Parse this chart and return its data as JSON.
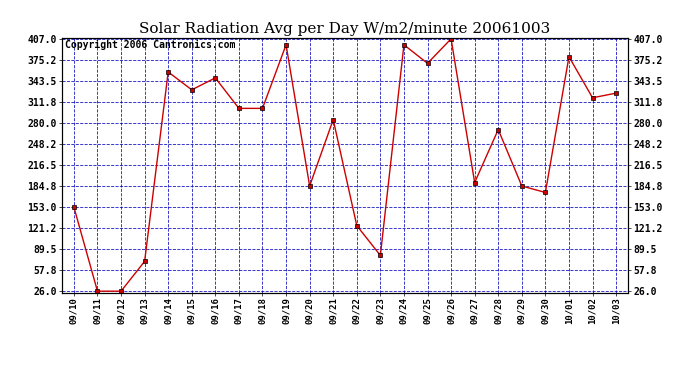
{
  "title": "Solar Radiation Avg per Day W/m2/minute 20061003",
  "copyright": "Copyright 2006 Cantronics.com",
  "dates": [
    "09/10",
    "09/11",
    "09/12",
    "09/13",
    "09/14",
    "09/15",
    "09/16",
    "09/17",
    "09/18",
    "09/19",
    "09/20",
    "09/21",
    "09/22",
    "09/23",
    "09/24",
    "09/25",
    "09/26",
    "09/27",
    "09/28",
    "09/29",
    "09/30",
    "10/01",
    "10/02",
    "10/03"
  ],
  "values": [
    153.0,
    26.0,
    26.0,
    71.0,
    357.0,
    330.0,
    348.0,
    302.0,
    302.0,
    398.0,
    184.8,
    285.0,
    125.0,
    80.0,
    398.0,
    370.0,
    407.0,
    190.0,
    270.0,
    184.8,
    175.0,
    380.0,
    318.0,
    325.0
  ],
  "yticks": [
    26.0,
    57.8,
    89.5,
    121.2,
    153.0,
    184.8,
    216.5,
    248.2,
    280.0,
    311.8,
    343.5,
    375.2,
    407.0
  ],
  "ylim": [
    26.0,
    407.0
  ],
  "line_color": "#cc0000",
  "marker_color": "#cc0000",
  "plot_bg": "#ffffff",
  "grid_color": "#0000bb",
  "title_fontsize": 11,
  "copyright_fontsize": 7
}
